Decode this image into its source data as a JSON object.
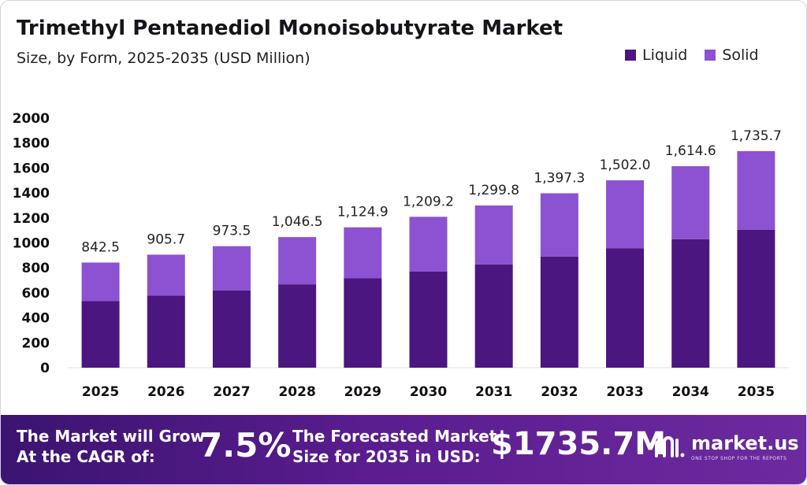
{
  "header": {
    "title": "Trimethyl Pentanediol Monoisobutyrate Market",
    "subtitle": "Size, by Form, 2025-2035 (USD Million)"
  },
  "legend": [
    {
      "label": "Liquid",
      "color": "#4b1680"
    },
    {
      "label": "Solid",
      "color": "#8c52d1"
    }
  ],
  "chart_data": {
    "type": "bar",
    "stacked": true,
    "title": "Trimethyl Pentanediol Monoisobutyrate Market",
    "subtitle": "Size, by Form, 2025-2035 (USD Million)",
    "xlabel": "",
    "ylabel": "",
    "ylim": [
      0,
      2000
    ],
    "yticks": [
      0,
      200,
      400,
      600,
      800,
      1000,
      1200,
      1400,
      1600,
      1800,
      2000
    ],
    "categories": [
      "2025",
      "2026",
      "2027",
      "2028",
      "2029",
      "2030",
      "2031",
      "2032",
      "2033",
      "2034",
      "2035"
    ],
    "series": [
      {
        "name": "Liquid",
        "color": "#4b1680",
        "values": [
          535,
          578,
          620,
          668,
          716,
          770,
          828,
          891,
          956,
          1029,
          1106
        ]
      },
      {
        "name": "Solid",
        "color": "#8c52d1",
        "values": [
          307.5,
          327.7,
          353.5,
          378.5,
          408.9,
          439.2,
          471.8,
          506.3,
          546.0,
          585.6,
          629.7
        ]
      }
    ],
    "totals": [
      842.5,
      905.7,
      973.5,
      1046.5,
      1124.9,
      1209.2,
      1299.8,
      1397.3,
      1502.0,
      1614.6,
      1735.7
    ],
    "total_labels": [
      "842.5",
      "905.7",
      "973.5",
      "1,046.5",
      "1,124.9",
      "1,209.2",
      "1,299.8",
      "1,397.3",
      "1,502.0",
      "1,614.6",
      "1,735.7"
    ],
    "legend_position": "top-right",
    "grid": false
  },
  "footer": {
    "cagr_label_line1": "The Market will Grow",
    "cagr_label_line2": "At the CAGR of:",
    "cagr_value": "7.5%",
    "forecast_label_line1": "The Forecasted Market",
    "forecast_label_line2": "Size for 2035 in USD:",
    "forecast_value": "$1735.7M",
    "brand_name": "market.us",
    "brand_tagline": "ONE STOP SHOP FOR THE REPORTS"
  }
}
